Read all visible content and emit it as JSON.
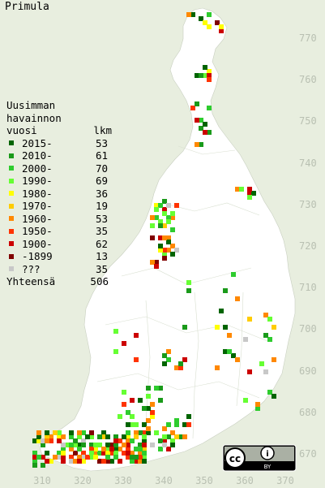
{
  "title": "Primula",
  "legend": {
    "heading_lines": [
      "Uusimman",
      "havainnon",
      "vuosi"
    ],
    "count_header": "lkm",
    "items": [
      {
        "label": "2015-",
        "count": "53",
        "color": "#006400"
      },
      {
        "label": "2010-",
        "count": "61",
        "color": "#1a9a1a"
      },
      {
        "label": "2000-",
        "count": "70",
        "color": "#2ecc2e"
      },
      {
        "label": "1990-",
        "count": "69",
        "color": "#66ff33"
      },
      {
        "label": "1980-",
        "count": "36",
        "color": "#ffff00"
      },
      {
        "label": "1970-",
        "count": "19",
        "color": "#ffcc00"
      },
      {
        "label": "1960-",
        "count": "53",
        "color": "#ff8800"
      },
      {
        "label": "1950-",
        "count": "35",
        "color": "#ff3300"
      },
      {
        "label": "1900-",
        "count": "62",
        "color": "#cc0000"
      },
      {
        "label": "-1899",
        "count": "13",
        "color": "#800000"
      },
      {
        "label": " ???",
        "count": "35",
        "color": "#c8c8c8"
      }
    ],
    "total_label": "Yhteensä",
    "total_count": "506"
  },
  "y_axis_ticks": [
    "770",
    "760",
    "750",
    "740",
    "730",
    "720",
    "710",
    "700",
    "690",
    "680",
    "670"
  ],
  "x_axis_ticks": [
    "310",
    "320",
    "330",
    "340",
    "350",
    "360",
    "370"
  ],
  "license_badge": {
    "cc": "cc",
    "by": "BY",
    "person": "i"
  }
}
